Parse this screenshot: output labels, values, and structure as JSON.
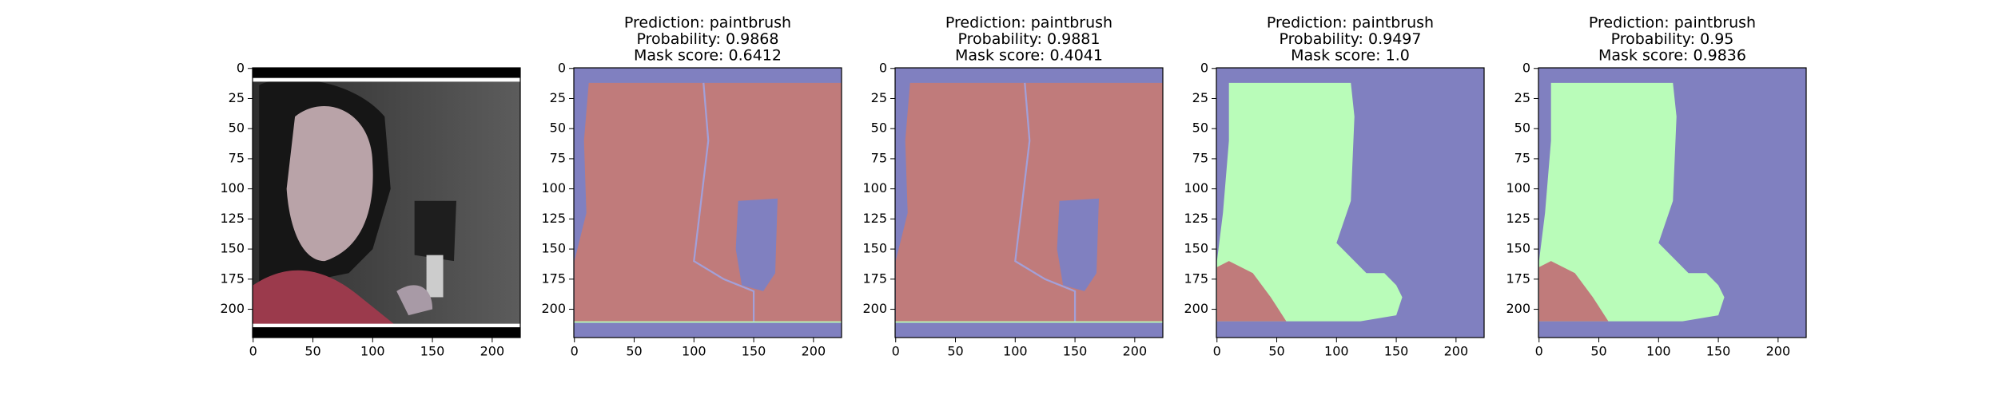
{
  "chart_data": [
    {
      "type": "image",
      "title": [
        "Prediction: paintbrush",
        "Probability: 0.9868",
        "Mask score: 0.6412"
      ],
      "xlim": [
        -0.5,
        223.5
      ],
      "ylim": [
        223.5,
        -0.5
      ],
      "xticks": [
        0,
        50,
        100,
        150,
        200
      ],
      "yticks": [
        0,
        25,
        50,
        75,
        100,
        125,
        150,
        175,
        200
      ]
    },
    {
      "type": "image",
      "title": [
        "Prediction: paintbrush",
        "Probability: 0.9881",
        "Mask score: 0.4041"
      ],
      "xlim": [
        -0.5,
        223.5
      ],
      "ylim": [
        223.5,
        -0.5
      ],
      "xticks": [
        0,
        50,
        100,
        150,
        200
      ],
      "yticks": [
        0,
        25,
        50,
        75,
        100,
        125,
        150,
        175,
        200
      ]
    },
    {
      "type": "image",
      "title": [
        "Prediction: paintbrush",
        "Probability: 0.9497",
        "Mask score: 1.0"
      ],
      "xlim": [
        -0.5,
        223.5
      ],
      "ylim": [
        223.5,
        -0.5
      ],
      "xticks": [
        0,
        50,
        100,
        150,
        200
      ],
      "yticks": [
        0,
        25,
        50,
        75,
        100,
        125,
        150,
        175,
        200
      ]
    },
    {
      "type": "image",
      "title": [
        "Prediction: paintbrush",
        "Probability: 0.95",
        "Mask score: 0.9836"
      ],
      "xlim": [
        -0.5,
        223.5
      ],
      "ylim": [
        223.5,
        -0.5
      ],
      "xticks": [
        0,
        50,
        100,
        150,
        200
      ],
      "yticks": [
        0,
        25,
        50,
        75,
        100,
        125,
        150,
        175,
        200
      ]
    }
  ]
}
